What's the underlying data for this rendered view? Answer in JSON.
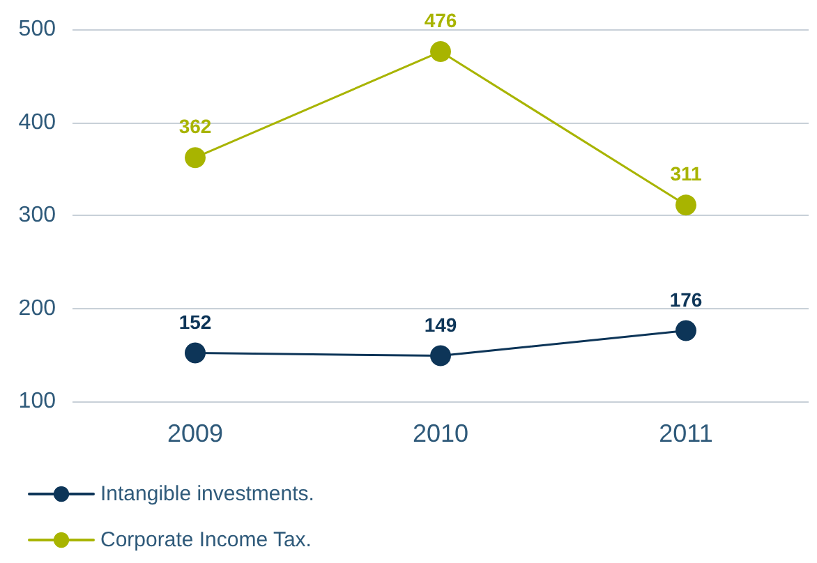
{
  "chart_data": {
    "type": "line",
    "categories": [
      "2009",
      "2010",
      "2011"
    ],
    "series": [
      {
        "name": "Intangible investments.",
        "color": "#0d3558",
        "values": [
          152,
          149,
          176
        ]
      },
      {
        "name": "Corporate Income Tax.",
        "color": "#a8b400",
        "values": [
          362,
          476,
          311
        ]
      }
    ],
    "ylim": [
      100,
      500
    ],
    "yticks": [
      100,
      200,
      300,
      400,
      500
    ],
    "grid": "y",
    "legend": "bottom left",
    "marker": "circle",
    "line_style": "solid",
    "data_labels": true
  }
}
